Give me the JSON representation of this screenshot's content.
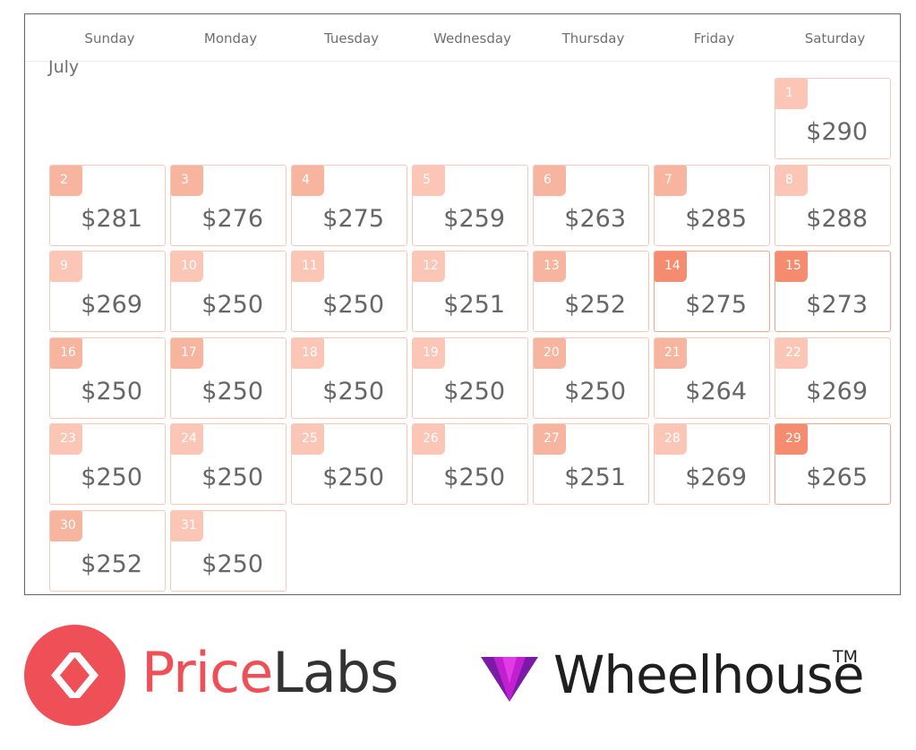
{
  "calendar": {
    "weekdays": [
      "Sunday",
      "Monday",
      "Tuesday",
      "Wednesday",
      "Thursday",
      "Friday",
      "Saturday"
    ],
    "month": "July",
    "first_weekday_index": 6,
    "badge_colors": {
      "light": "#fbc6b6",
      "medium": "#f7b49f",
      "strong": "#f58b6f"
    },
    "days": [
      {
        "day": "1",
        "price": "$290",
        "tone": "light"
      },
      {
        "day": "2",
        "price": "$281",
        "tone": "medium"
      },
      {
        "day": "3",
        "price": "$276",
        "tone": "medium"
      },
      {
        "day": "4",
        "price": "$275",
        "tone": "medium"
      },
      {
        "day": "5",
        "price": "$259",
        "tone": "light"
      },
      {
        "day": "6",
        "price": "$263",
        "tone": "medium"
      },
      {
        "day": "7",
        "price": "$285",
        "tone": "medium"
      },
      {
        "day": "8",
        "price": "$288",
        "tone": "light"
      },
      {
        "day": "9",
        "price": "$269",
        "tone": "light"
      },
      {
        "day": "10",
        "price": "$250",
        "tone": "light"
      },
      {
        "day": "11",
        "price": "$250",
        "tone": "light"
      },
      {
        "day": "12",
        "price": "$251",
        "tone": "light"
      },
      {
        "day": "13",
        "price": "$252",
        "tone": "medium"
      },
      {
        "day": "14",
        "price": "$275",
        "tone": "strong"
      },
      {
        "day": "15",
        "price": "$273",
        "tone": "strong"
      },
      {
        "day": "16",
        "price": "$250",
        "tone": "medium"
      },
      {
        "day": "17",
        "price": "$250",
        "tone": "medium"
      },
      {
        "day": "18",
        "price": "$250",
        "tone": "light"
      },
      {
        "day": "19",
        "price": "$250",
        "tone": "light"
      },
      {
        "day": "20",
        "price": "$250",
        "tone": "medium"
      },
      {
        "day": "21",
        "price": "$264",
        "tone": "medium"
      },
      {
        "day": "22",
        "price": "$269",
        "tone": "light"
      },
      {
        "day": "23",
        "price": "$250",
        "tone": "light"
      },
      {
        "day": "24",
        "price": "$250",
        "tone": "light"
      },
      {
        "day": "25",
        "price": "$250",
        "tone": "light"
      },
      {
        "day": "26",
        "price": "$250",
        "tone": "light"
      },
      {
        "day": "27",
        "price": "$251",
        "tone": "medium"
      },
      {
        "day": "28",
        "price": "$269",
        "tone": "light"
      },
      {
        "day": "29",
        "price": "$265",
        "tone": "strong"
      },
      {
        "day": "30",
        "price": "$252",
        "tone": "medium"
      },
      {
        "day": "31",
        "price": "$250",
        "tone": "light"
      }
    ]
  },
  "logos": {
    "pricelabs": {
      "part1": "Price",
      "part2": "Labs",
      "icon": "pricelabs-logo-icon",
      "color": "#ef4f56"
    },
    "wheelhouse": {
      "name": "Wheelhouse",
      "tm": "TM",
      "icon": "wheelhouse-logo-icon",
      "color": "#b31cc4"
    }
  }
}
